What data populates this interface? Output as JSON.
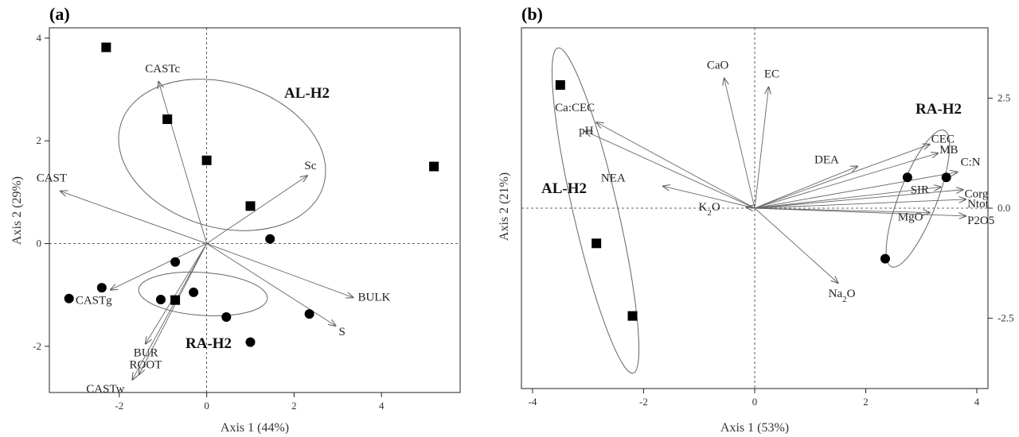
{
  "chart_data": [
    {
      "type": "scatter",
      "panel": "(a)",
      "xlabel": "Axis 1 (44%)",
      "ylabel": "Axis 2 (29%)",
      "xlim": [
        -3.6,
        5.8
      ],
      "ylim": [
        -2.9,
        4.2
      ],
      "xticks": [
        -2,
        0,
        2,
        4
      ],
      "yticks": [
        -2,
        0,
        2,
        4
      ],
      "y_axis_side": "left",
      "series": [
        {
          "marker": "square",
          "points": [
            [
              -2.3,
              3.82
            ],
            [
              -0.9,
              2.42
            ],
            [
              0.0,
              1.62
            ],
            [
              1.0,
              0.73
            ],
            [
              5.2,
              1.5
            ],
            [
              -0.72,
              -1.1
            ]
          ]
        },
        {
          "marker": "circle",
          "points": [
            [
              1.45,
              0.09
            ],
            [
              -0.72,
              -0.36
            ],
            [
              -2.4,
              -0.86
            ],
            [
              -3.15,
              -1.07
            ],
            [
              -1.05,
              -1.09
            ],
            [
              -0.3,
              -0.95
            ],
            [
              0.45,
              -1.43
            ],
            [
              2.35,
              -1.37
            ],
            [
              1.0,
              -1.92
            ]
          ]
        }
      ],
      "vectors": [
        {
          "label": "CASTc",
          "x": -1.1,
          "y": 3.15
        },
        {
          "label": "Sc",
          "x": 2.3,
          "y": 1.32
        },
        {
          "label": "CAST",
          "x": -3.35,
          "y": 1.02
        },
        {
          "label": "BULK",
          "x": 3.35,
          "y": -1.05
        },
        {
          "label": "S",
          "x": 2.95,
          "y": -1.6
        },
        {
          "label": "CASTg",
          "x": -2.2,
          "y": -0.9
        },
        {
          "label": "BUR",
          "x": -1.4,
          "y": -1.95
        },
        {
          "label": "ROOT",
          "x": -1.55,
          "y": -2.55
        },
        {
          "label": "CASTw",
          "x": -1.7,
          "y": -2.65
        }
      ],
      "groups": [
        {
          "label": "AL-H2"
        },
        {
          "label": "RA-H2"
        }
      ]
    },
    {
      "type": "scatter",
      "panel": "(b)",
      "xlabel": "Axis 1 (53%)",
      "ylabel": "Axis 2 (21%)",
      "xlim": [
        -4.2,
        4.2
      ],
      "ylim": [
        -4.1,
        4.1
      ],
      "xticks": [
        -4,
        -2,
        0,
        2,
        4
      ],
      "yticks": [
        2.5,
        0.0,
        -2.5
      ],
      "y_axis_side": "right",
      "series": [
        {
          "marker": "square",
          "points": [
            [
              -3.5,
              2.8
            ],
            [
              -2.85,
              -0.8
            ],
            [
              -2.2,
              -2.45
            ]
          ]
        },
        {
          "marker": "circle",
          "points": [
            [
              2.75,
              0.7
            ],
            [
              3.45,
              0.7
            ],
            [
              2.35,
              -1.15
            ]
          ]
        }
      ],
      "vectors": [
        {
          "label": "CaO",
          "x": -0.55,
          "y": 2.95
        },
        {
          "label": "EC",
          "x": 0.25,
          "y": 2.75
        },
        {
          "label": "Ca:CEC",
          "x": -2.85,
          "y": 1.95
        },
        {
          "label": "pH",
          "x": -3.05,
          "y": 1.75
        },
        {
          "label": "NEA",
          "x": -1.65,
          "y": 0.5
        },
        {
          "label": "K2O",
          "x": -0.15,
          "y": 0.02
        },
        {
          "label": "DEA",
          "x": 1.85,
          "y": 0.95
        },
        {
          "label": "CEC",
          "x": 3.15,
          "y": 1.45
        },
        {
          "label": "MB",
          "x": 3.3,
          "y": 1.25
        },
        {
          "label": "C:N",
          "x": 3.65,
          "y": 0.82
        },
        {
          "label": "SIR",
          "x": 3.35,
          "y": 0.48
        },
        {
          "label": "Corg",
          "x": 3.75,
          "y": 0.42
        },
        {
          "label": "Ntot",
          "x": 3.8,
          "y": 0.2
        },
        {
          "label": "MgO",
          "x": 3.15,
          "y": -0.1
        },
        {
          "label": "P2O5",
          "x": 3.8,
          "y": -0.18
        },
        {
          "label": "Na2O",
          "x": 1.5,
          "y": -1.7
        }
      ],
      "groups": [
        {
          "label": "AL-H2"
        },
        {
          "label": "RA-H2"
        }
      ]
    }
  ]
}
